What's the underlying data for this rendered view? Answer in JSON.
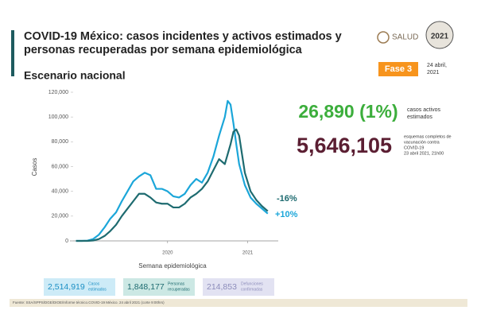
{
  "header": {
    "title_line1": "COVID-19 México: casos incidentes y activos estimados y",
    "title_line2": "personas recuperadas por semana epidemiológica",
    "subtitle": "Escenario nacional",
    "logo": "SALUD",
    "seal_text": "2021",
    "badge": "Fase 3",
    "date_line1": "24 abril,",
    "date_line2": "2021"
  },
  "chart_data": {
    "type": "line",
    "x_label": "Semana epidemiológica",
    "y_label": "Casos",
    "x": [
      1,
      3,
      5,
      7,
      9,
      11,
      13,
      15,
      17,
      19,
      21,
      23,
      25,
      27,
      29,
      31,
      33,
      35,
      37,
      39,
      41,
      43,
      45,
      47,
      49,
      51,
      53,
      54,
      55,
      56,
      57,
      58,
      60,
      62,
      64,
      66,
      68
    ],
    "xlim": [
      0,
      70
    ],
    "xticks": [
      {
        "value": 33,
        "label": "2020"
      },
      {
        "value": 61,
        "label": "2021"
      }
    ],
    "ylim": [
      0,
      120000
    ],
    "yticks": [
      0,
      {
        "value": 20000,
        "label": "20,000"
      },
      {
        "value": 40000,
        "label": "40,000"
      },
      {
        "value": 60000,
        "label": "60,000"
      },
      {
        "value": 80000,
        "label": "80,000"
      },
      {
        "value": 100000,
        "label": "100,000"
      },
      {
        "value": 120000,
        "label": "120,000"
      }
    ],
    "grid": false,
    "series": [
      {
        "color": "#1ba6d9",
        "values": [
          0,
          0,
          200,
          1500,
          5000,
          11000,
          18000,
          23000,
          32000,
          40000,
          48000,
          52000,
          55000,
          53000,
          42000,
          42000,
          40000,
          36000,
          35000,
          38000,
          45000,
          50000,
          47000,
          55000,
          68000,
          85000,
          100000,
          113000,
          110000,
          95000,
          78000,
          62000,
          45000,
          35000,
          30000,
          26000,
          22000
        ]
      },
      {
        "color": "#1e6b70",
        "values": [
          0,
          0,
          0,
          300,
          1500,
          4000,
          8000,
          13000,
          20000,
          26000,
          32000,
          38000,
          38000,
          35000,
          31000,
          30000,
          30000,
          27000,
          27000,
          30000,
          35000,
          38000,
          42000,
          48000,
          57000,
          66000,
          62000,
          70000,
          78000,
          88000,
          90000,
          85000,
          55000,
          40000,
          33000,
          28000,
          24000
        ]
      }
    ],
    "annotations": [
      "-16%",
      "+10%"
    ]
  },
  "stats": {
    "active": {
      "value": "26,890 (1%)",
      "label_line1": "casos activos",
      "label_line2": "estimados"
    },
    "vaccines": {
      "value": "5,646,105",
      "label_line1": "esquemas completos de",
      "label_line2": "vacunación contra",
      "label_line3": "COVID-19",
      "label_line4": "23 abril 2021, 21h00"
    }
  },
  "boxes": [
    {
      "value": "2,514,919",
      "label_line1": "Casos",
      "label_line2": "estimados"
    },
    {
      "value": "1,848,177",
      "label_line1": "Personas",
      "label_line2": "recuperadas"
    },
    {
      "value": "214,853",
      "label_line1": "Defunciones",
      "label_line2": "confirmadas"
    }
  ],
  "footer": "Fuente: SSA/SPPS/DGE/DIOE/Informe técnico.COVID-19 México. 24 abril 2021 (corte 9:00hrs)"
}
